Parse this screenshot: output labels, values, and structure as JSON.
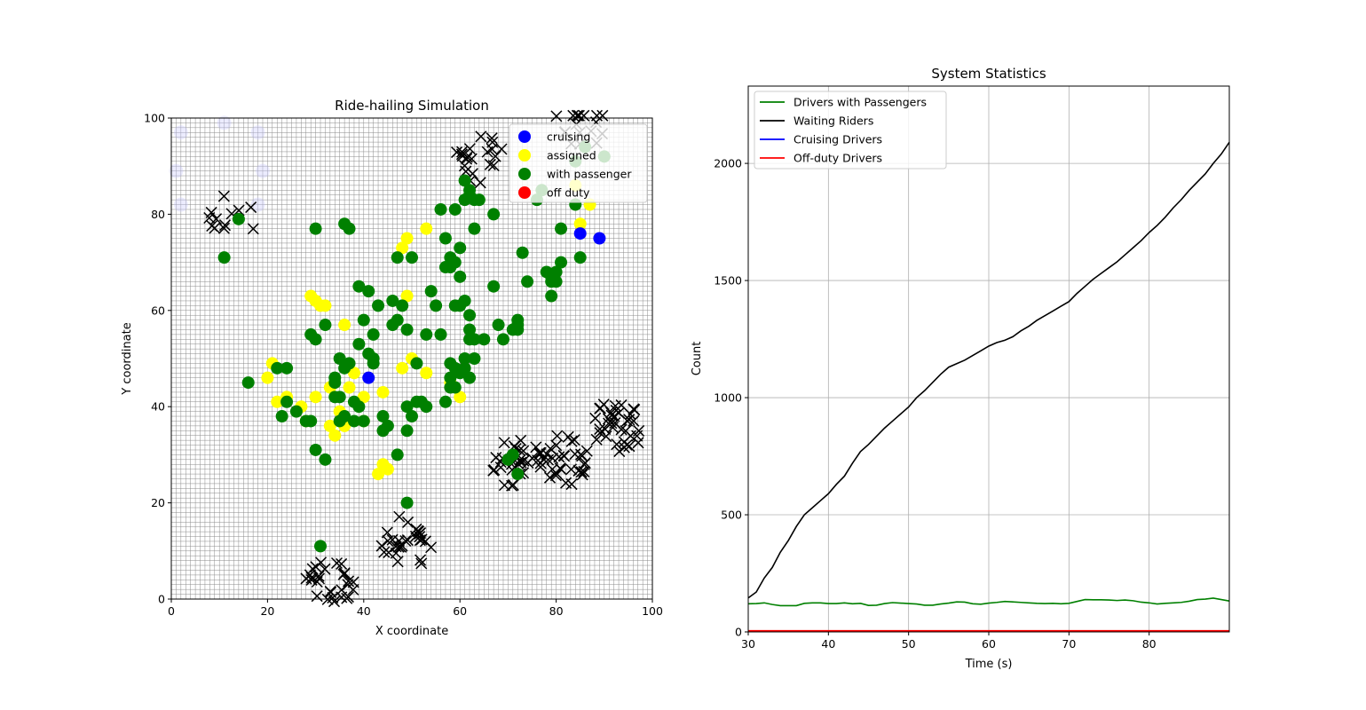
{
  "left_chart": {
    "title": "Ride-hailing Simulation",
    "xlabel": "X coordinate",
    "ylabel": "Y coordinate",
    "xlim": [
      0,
      100
    ],
    "ylim": [
      0,
      100
    ],
    "xticks": [
      "0",
      "20",
      "40",
      "60",
      "80",
      "100"
    ],
    "yticks": [
      "0",
      "20",
      "40",
      "60",
      "80",
      "100"
    ],
    "grid_spacing": 1,
    "legend": [
      {
        "label": "cruising",
        "color": "#0000ff"
      },
      {
        "label": "assigned",
        "color": "#ffff00"
      },
      {
        "label": "with passenger",
        "color": "#008000"
      },
      {
        "label": "off duty",
        "color": "#ff0000"
      }
    ]
  },
  "right_chart": {
    "title": "System Statistics",
    "xlabel": "Time (s)",
    "ylabel": "Count",
    "xlim": [
      30,
      90
    ],
    "ylim": [
      0,
      2330
    ],
    "xticks": [
      "30",
      "40",
      "50",
      "60",
      "70",
      "80"
    ],
    "yticks": [
      "0",
      "500",
      "1000",
      "1500",
      "2000"
    ],
    "legend": [
      {
        "label": "Drivers with Passengers",
        "color": "#008000"
      },
      {
        "label": "Waiting Riders",
        "color": "#000000"
      },
      {
        "label": "Cruising Drivers",
        "color": "#0000ff"
      },
      {
        "label": "Off-duty Drivers",
        "color": "#ff0000"
      }
    ]
  },
  "chart_data": [
    {
      "type": "scatter",
      "title": "Ride-hailing Simulation",
      "xlabel": "X coordinate",
      "ylabel": "Y coordinate",
      "xlim": [
        0,
        100
      ],
      "ylim": [
        0,
        100
      ],
      "grid": true,
      "legend_position": "top-right",
      "series": [
        {
          "name": "cruising",
          "color": "#0000ff",
          "points": [
            [
              85,
              76
            ],
            [
              89,
              75
            ],
            [
              41,
              46
            ]
          ]
        },
        {
          "name": "assigned",
          "color": "#ffff00",
          "points": [
            [
              30,
              62
            ],
            [
              31,
              61
            ],
            [
              32,
              61
            ],
            [
              29,
              63
            ],
            [
              48,
              73
            ],
            [
              49,
              75
            ],
            [
              53,
              77
            ],
            [
              49,
              63
            ],
            [
              36,
              57
            ],
            [
              21,
              49
            ],
            [
              20,
              46
            ],
            [
              22,
              41
            ],
            [
              24,
              42
            ],
            [
              28,
              37
            ],
            [
              27,
              40
            ],
            [
              30,
              42
            ],
            [
              33,
              44
            ],
            [
              34,
              34
            ],
            [
              33,
              36
            ],
            [
              35,
              39
            ],
            [
              36,
              36
            ],
            [
              37,
              44
            ],
            [
              38,
              47
            ],
            [
              40,
              42
            ],
            [
              40,
              37
            ],
            [
              44,
              43
            ],
            [
              43,
              26
            ],
            [
              44,
              28
            ],
            [
              45,
              27
            ],
            [
              48,
              48
            ],
            [
              50,
              50
            ],
            [
              53,
              47
            ],
            [
              58,
              45
            ],
            [
              60,
              42
            ],
            [
              85,
              78
            ],
            [
              84,
              86
            ],
            [
              87,
              82
            ]
          ]
        },
        {
          "name": "with passenger",
          "color": "#008000",
          "points": [
            [
              11,
              71
            ],
            [
              14,
              79
            ],
            [
              16,
              45
            ],
            [
              22,
              48
            ],
            [
              24,
              48
            ],
            [
              23,
              38
            ],
            [
              24,
              41
            ],
            [
              26,
              39
            ],
            [
              28,
              37
            ],
            [
              29,
              37
            ],
            [
              29,
              55
            ],
            [
              30,
              54
            ],
            [
              30,
              77
            ],
            [
              32,
              57
            ],
            [
              30,
              31
            ],
            [
              32,
              29
            ],
            [
              31,
              11
            ],
            [
              34,
              45
            ],
            [
              35,
              50
            ],
            [
              34,
              46
            ],
            [
              34,
              42
            ],
            [
              35,
              42
            ],
            [
              35,
              37
            ],
            [
              36,
              38
            ],
            [
              36,
              48
            ],
            [
              37,
              49
            ],
            [
              37,
              77
            ],
            [
              36,
              78
            ],
            [
              38,
              41
            ],
            [
              38,
              37
            ],
            [
              39,
              40
            ],
            [
              40,
              37
            ],
            [
              39,
              53
            ],
            [
              40,
              58
            ],
            [
              39,
              65
            ],
            [
              41,
              64
            ],
            [
              41,
              51
            ],
            [
              42,
              50
            ],
            [
              42,
              49
            ],
            [
              42,
              55
            ],
            [
              43,
              61
            ],
            [
              44,
              38
            ],
            [
              44,
              35
            ],
            [
              45,
              36
            ],
            [
              46,
              57
            ],
            [
              46,
              62
            ],
            [
              47,
              58
            ],
            [
              47,
              71
            ],
            [
              47,
              30
            ],
            [
              48,
              61
            ],
            [
              49,
              56
            ],
            [
              49,
              40
            ],
            [
              49,
              35
            ],
            [
              50,
              71
            ],
            [
              50,
              38
            ],
            [
              51,
              41
            ],
            [
              52,
              41
            ],
            [
              51,
              49
            ],
            [
              53,
              40
            ],
            [
              53,
              55
            ],
            [
              54,
              64
            ],
            [
              55,
              61
            ],
            [
              56,
              55
            ],
            [
              56,
              81
            ],
            [
              57,
              75
            ],
            [
              57,
              69
            ],
            [
              58,
              71
            ],
            [
              58,
              69
            ],
            [
              59,
              70
            ],
            [
              59,
              81
            ],
            [
              60,
              73
            ],
            [
              60,
              67
            ],
            [
              60,
              61
            ],
            [
              61,
              62
            ],
            [
              59,
              61
            ],
            [
              57,
              41
            ],
            [
              58,
              49
            ],
            [
              58,
              46
            ],
            [
              58,
              44
            ],
            [
              59,
              44
            ],
            [
              59,
              48
            ],
            [
              60,
              47
            ],
            [
              61,
              48
            ],
            [
              61,
              50
            ],
            [
              62,
              46
            ],
            [
              62,
              59
            ],
            [
              62,
              56
            ],
            [
              62,
              54
            ],
            [
              63,
              54
            ],
            [
              63,
              50
            ],
            [
              63,
              77
            ],
            [
              63,
              83
            ],
            [
              64,
              83
            ],
            [
              62,
              84
            ],
            [
              61,
              83
            ],
            [
              61,
              87
            ],
            [
              62,
              85
            ],
            [
              65,
              54
            ],
            [
              67,
              65
            ],
            [
              67,
              80
            ],
            [
              68,
              57
            ],
            [
              69,
              54
            ],
            [
              71,
              56
            ],
            [
              72,
              58
            ],
            [
              72,
              57
            ],
            [
              72,
              56
            ],
            [
              73,
              72
            ],
            [
              74,
              66
            ],
            [
              76,
              83
            ],
            [
              77,
              85
            ],
            [
              78,
              68
            ],
            [
              79,
              67
            ],
            [
              79,
              66
            ],
            [
              80,
              66
            ],
            [
              80,
              68
            ],
            [
              81,
              70
            ],
            [
              81,
              77
            ],
            [
              79,
              63
            ],
            [
              84,
              82
            ],
            [
              84,
              91
            ],
            [
              85,
              71
            ],
            [
              86,
              94
            ],
            [
              90,
              92
            ],
            [
              71,
              30
            ],
            [
              70,
              29
            ],
            [
              72,
              26
            ],
            [
              49,
              20
            ]
          ]
        },
        {
          "name": "off duty",
          "color": "#ff0000",
          "points": []
        }
      ],
      "rider_clusters": [
        {
          "center": [
            12,
            79
          ],
          "count": 12
        },
        {
          "center": [
            64,
            91
          ],
          "count": 22
        },
        {
          "center": [
            85,
            99
          ],
          "count": 18
        },
        {
          "center": [
            72,
            28
          ],
          "count": 30
        },
        {
          "center": [
            82,
            29
          ],
          "count": 35
        },
        {
          "center": [
            93,
            36
          ],
          "count": 40
        },
        {
          "center": [
            49,
            12
          ],
          "count": 30
        },
        {
          "center": [
            33,
            3
          ],
          "count": 30
        }
      ]
    },
    {
      "type": "line",
      "title": "System Statistics",
      "xlabel": "Time (s)",
      "ylabel": "Count",
      "xlim": [
        30,
        90
      ],
      "ylim": [
        0,
        2330
      ],
      "grid": true,
      "legend_position": "top-left",
      "x": [
        30,
        31,
        32,
        33,
        34,
        35,
        36,
        37,
        38,
        39,
        40,
        41,
        42,
        43,
        44,
        45,
        46,
        47,
        48,
        49,
        50,
        51,
        52,
        53,
        54,
        55,
        56,
        57,
        58,
        59,
        60,
        61,
        62,
        63,
        64,
        65,
        66,
        67,
        68,
        69,
        70,
        71,
        72,
        73,
        74,
        75,
        76,
        77,
        78,
        79,
        80,
        81,
        82,
        83,
        84,
        85,
        86,
        87,
        88,
        89,
        90
      ],
      "series": [
        {
          "name": "Drivers with Passengers",
          "color": "#008000",
          "values": [
            120,
            121,
            124,
            117,
            112,
            112,
            112,
            122,
            124,
            124,
            121,
            121,
            124,
            120,
            122,
            113,
            114,
            121,
            125,
            123,
            121,
            119,
            114,
            114,
            119,
            123,
            128,
            127,
            120,
            118,
            123,
            126,
            130,
            128,
            126,
            124,
            122,
            121,
            122,
            120,
            122,
            130,
            138,
            137,
            137,
            136,
            134,
            136,
            133,
            127,
            124,
            119,
            122,
            124,
            126,
            131,
            138,
            140,
            144,
            138,
            132
          ]
        },
        {
          "name": "Waiting Riders",
          "color": "#000000",
          "values": [
            145,
            170,
            230,
            275,
            340,
            390,
            450,
            500,
            530,
            560,
            590,
            630,
            665,
            720,
            770,
            800,
            835,
            870,
            900,
            930,
            960,
            1000,
            1030,
            1065,
            1100,
            1130,
            1145,
            1160,
            1180,
            1200,
            1220,
            1235,
            1245,
            1260,
            1285,
            1305,
            1330,
            1350,
            1370,
            1390,
            1410,
            1445,
            1475,
            1505,
            1530,
            1555,
            1580,
            1610,
            1640,
            1670,
            1705,
            1735,
            1770,
            1810,
            1845,
            1885,
            1920,
            1955,
            2000,
            2040,
            2090
          ]
        },
        {
          "name": "Cruising Drivers",
          "color": "#0000ff",
          "values": [
            3,
            3,
            3,
            3,
            3,
            3,
            3,
            3,
            3,
            3,
            3,
            3,
            3,
            3,
            3,
            3,
            3,
            3,
            3,
            3,
            3,
            3,
            3,
            3,
            3,
            3,
            3,
            3,
            3,
            3,
            3,
            3,
            3,
            3,
            3,
            3,
            3,
            3,
            3,
            3,
            3,
            3,
            3,
            3,
            3,
            3,
            3,
            3,
            3,
            3,
            3,
            3,
            3,
            3,
            3,
            3,
            3,
            3,
            3,
            3,
            3
          ]
        },
        {
          "name": "Off-duty Drivers",
          "color": "#ff0000",
          "values": [
            5,
            5,
            5,
            5,
            5,
            5,
            5,
            5,
            5,
            5,
            5,
            5,
            5,
            5,
            5,
            5,
            5,
            5,
            5,
            5,
            5,
            5,
            5,
            5,
            5,
            5,
            5,
            5,
            5,
            5,
            5,
            5,
            5,
            5,
            5,
            5,
            5,
            5,
            5,
            5,
            5,
            5,
            5,
            5,
            5,
            5,
            5,
            5,
            5,
            5,
            5,
            5,
            5,
            5,
            5,
            5,
            5,
            5,
            5,
            5,
            5
          ]
        }
      ]
    }
  ]
}
